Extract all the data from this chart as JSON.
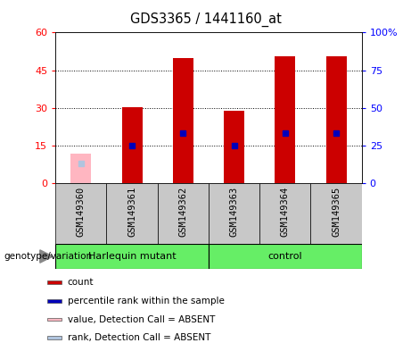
{
  "title": "GDS3365 / 1441160_at",
  "samples": [
    "GSM149360",
    "GSM149361",
    "GSM149362",
    "GSM149363",
    "GSM149364",
    "GSM149365"
  ],
  "group_labels": [
    "Harlequin mutant",
    "control"
  ],
  "count_values": [
    null,
    30.5,
    50.0,
    29.0,
    50.5,
    50.5
  ],
  "rank_values": [
    null,
    15.0,
    20.0,
    15.0,
    20.0,
    20.0
  ],
  "count_absent": [
    12.0,
    null,
    null,
    null,
    null,
    null
  ],
  "rank_absent": [
    8.0,
    null,
    null,
    null,
    null,
    null
  ],
  "bar_color_red": "#CC0000",
  "bar_color_blue": "#0000BB",
  "bar_color_pink": "#FFB6C1",
  "bar_color_lightblue": "#B0C4DE",
  "ylim_left": [
    0,
    60
  ],
  "ylim_right": [
    0,
    100
  ],
  "yticks_left": [
    0,
    15,
    30,
    45,
    60
  ],
  "yticks_right": [
    0,
    25,
    50,
    75,
    100
  ],
  "ytick_labels_left": [
    "0",
    "15",
    "30",
    "45",
    "60"
  ],
  "ytick_labels_right": [
    "0",
    "25",
    "50",
    "75",
    "100%"
  ],
  "grid_lines": [
    15,
    30,
    45
  ],
  "bar_width": 0.4,
  "blue_marker_size": 5,
  "plot_bg": "#FFFFFF",
  "gray_bg": "#C8C8C8",
  "green_bg": "#66EE66",
  "legend_items": [
    {
      "label": "count",
      "color": "#CC0000"
    },
    {
      "label": "percentile rank within the sample",
      "color": "#0000BB"
    },
    {
      "label": "value, Detection Call = ABSENT",
      "color": "#FFB6C1"
    },
    {
      "label": "rank, Detection Call = ABSENT",
      "color": "#B0C4DE"
    }
  ]
}
